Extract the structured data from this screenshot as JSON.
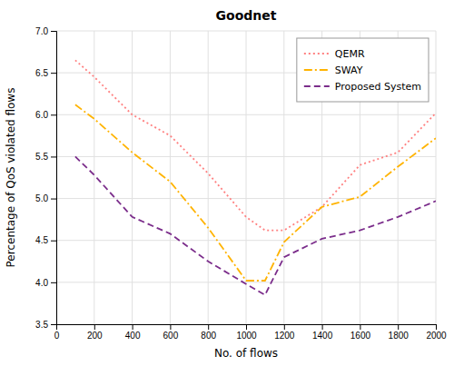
{
  "chart_data": {
    "type": "line",
    "title": "Goodnet",
    "xlabel": "No. of flows",
    "ylabel": "Percentage of QoS violated flows",
    "x": [
      100,
      200,
      400,
      600,
      800,
      1000,
      1100,
      1200,
      1400,
      1600,
      1800,
      2000
    ],
    "series": [
      {
        "name": "QEMR",
        "color": "#FF8080",
        "line_style": "dotted",
        "values": [
          6.65,
          6.45,
          6.0,
          5.75,
          5.3,
          4.78,
          4.62,
          4.62,
          4.9,
          5.4,
          5.55,
          6.02
        ]
      },
      {
        "name": "SWAY",
        "color": "#FFB300",
        "line_style": "dashdot",
        "values": [
          6.12,
          5.95,
          5.55,
          5.2,
          4.65,
          4.02,
          4.02,
          4.48,
          4.9,
          5.02,
          5.38,
          5.72
        ]
      },
      {
        "name": "Proposed System",
        "color": "#7B2D8B",
        "line_style": "dashed",
        "values": [
          5.5,
          5.28,
          4.78,
          4.58,
          4.25,
          3.98,
          3.85,
          4.3,
          4.52,
          4.62,
          4.78,
          4.97
        ]
      }
    ],
    "xlim": [
      0,
      2000
    ],
    "ylim": [
      3.5,
      7
    ],
    "xticks": [
      0,
      200,
      400,
      600,
      800,
      1000,
      1200,
      1400,
      1600,
      1800,
      2000
    ],
    "yticks": [
      3.5,
      {
        "value": 4.0,
        "label": "4.0"
      },
      4.5,
      {
        "value": 5.0,
        "label": "5.0"
      },
      5.5,
      {
        "value": 6.0,
        "label": "6.0"
      },
      6.5,
      {
        "value": 7.0,
        "label": "7.0"
      }
    ],
    "grid": true,
    "legend": "upper right"
  }
}
